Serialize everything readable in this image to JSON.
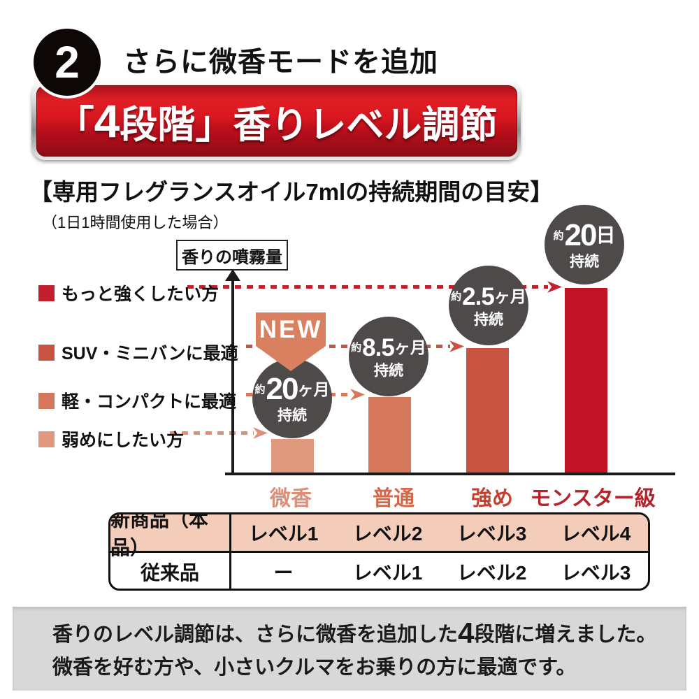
{
  "header": {
    "step_number": "2",
    "heading": "さらに微香モードを追加",
    "banner": {
      "bracket_open": "「",
      "number": "4",
      "rest": "段階」香りレベル調節",
      "red": "#d11420",
      "frame": "silver-metallic"
    }
  },
  "section": {
    "title": "【専用フレグランスオイル7mlの持続期間の目安】",
    "subtitle": "（1日1時間使用した場合）"
  },
  "chart_data": {
    "type": "bar",
    "title": "専用フレグランスオイル7mlの持続期間の目安",
    "subtitle": "1日1時間使用した場合",
    "ylabel": "香りの噴霧量",
    "xlabel": "",
    "grid": false,
    "legend_position": "none",
    "ylim": "unlabeled relative axis (spray volume)",
    "categories": [
      "微香",
      "普通",
      "強め",
      "モンスター級"
    ],
    "values_relative": [
      18,
      41,
      67,
      100
    ],
    "bar_colors": [
      "#e0997f",
      "#d4775b",
      "#c85340",
      "#c11426"
    ],
    "category_label_colors": [
      "#dc8f74",
      "#d3674a",
      "#c6402f",
      "#b5242c"
    ],
    "durations": [
      {
        "prefix": "約",
        "value": "20",
        "unit": "ヶ月",
        "suffix": "持続",
        "text": "約20ヶ月持続"
      },
      {
        "prefix": "約",
        "value": "8.5",
        "unit": "ヶ月",
        "suffix": "持続",
        "text": "約8.5ヶ月持続"
      },
      {
        "prefix": "約",
        "value": "2.5",
        "unit": "ヶ月",
        "suffix": "持続",
        "text": "約2.5ヶ月持続"
      },
      {
        "prefix": "約",
        "value": "20",
        "unit": "日",
        "suffix": "持続",
        "text": "約20日持続"
      }
    ],
    "bubble_color": "#4e4a49",
    "new_badge": {
      "label": "NEW",
      "applies_to": "微香",
      "color": "#d8805f"
    },
    "audience_pointers": [
      {
        "label": "もっと強くしたい方",
        "color": "#c2202e",
        "target": "モンスター級"
      },
      {
        "label": "SUV・ミニバンに最適",
        "color": "#c85340",
        "target": "強め"
      },
      {
        "label": "軽・コンパクトに最適",
        "color": "#d4775b",
        "target": "普通"
      },
      {
        "label": "弱めにしたい方",
        "color": "#e0997f",
        "target": "微香"
      }
    ]
  },
  "comparison_table": {
    "highlight_color": "#f3ccba",
    "rows": [
      {
        "label": "新商品（本品）",
        "cells": [
          "レベル1",
          "レベル2",
          "レベル3",
          "レベル4"
        ]
      },
      {
        "label": "従来品",
        "cells": [
          "ー",
          "レベル1",
          "レベル2",
          "レベル3"
        ]
      }
    ]
  },
  "footer": {
    "line1_pre": "香りのレベル調節は、さらに微香を追加した",
    "line1_big": "4",
    "line1_post": "段階に増えました。",
    "line2": "微香を好む方や、小さいクルマをお乗りの方に最適です。"
  }
}
